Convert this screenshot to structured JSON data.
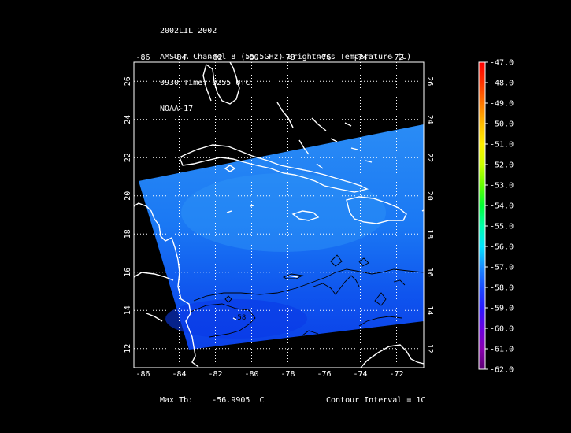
{
  "header": {
    "line1": "2002LIL 2002",
    "line2": "AMSU-A Channel 8 (55.5GHz) Brightness Temperature (C)",
    "line3": "0930 Time: 0255 UTC",
    "line4": "NOAA-17"
  },
  "map": {
    "lon_range": [
      -86.5,
      -70.5
    ],
    "lat_range": [
      11,
      27
    ],
    "lon_ticks": [
      -86,
      -84,
      -82,
      -80,
      -78,
      -76,
      -74,
      -72
    ],
    "lat_ticks": [
      12,
      14,
      16,
      18,
      20,
      22,
      24,
      26
    ],
    "grid": "dotted",
    "colors": {
      "background": "#000000",
      "coast": "#ffffff",
      "swath_dark": "#0b40e8",
      "swath_light": "#1a78f4",
      "contour": "#000000"
    },
    "contour_label": "-58"
  },
  "colorbar": {
    "labels": [
      "-47.0",
      "-48.0",
      "-49.0",
      "-50.0",
      "-51.0",
      "-52.0",
      "-53.0",
      "-54.0",
      "-55.0",
      "-56.0",
      "-57.0",
      "-58.0",
      "-59.0",
      "-60.0",
      "-61.0",
      "-62.0"
    ],
    "colors": [
      "#ff0000",
      "#ff3300",
      "#ff7700",
      "#ffbb00",
      "#ffee00",
      "#ccff00",
      "#66ff00",
      "#00ff33",
      "#00ffaa",
      "#00e5ff",
      "#1a8cff",
      "#1a4cff",
      "#2a1aff",
      "#6a00e0",
      "#8a00b0",
      "#5a0070"
    ]
  },
  "footer": {
    "max_label": "Max Tb:",
    "max_value": "-56.9905",
    "max_unit": "C",
    "contour_text": "Contour Interval = 1C"
  }
}
